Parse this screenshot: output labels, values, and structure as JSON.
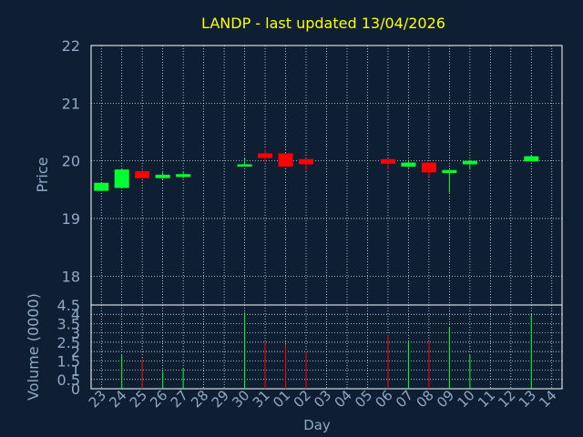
{
  "colors": {
    "background": "#0f1f33",
    "title": "#ffff00",
    "axis_text": "#8fa9c5",
    "frame": "#ffffff",
    "grid": "#ffffff",
    "up": "#00ff33",
    "down": "#ff0000"
  },
  "chart_data": [
    {
      "type": "candlestick",
      "title": "LANDP - last updated 13/04/2026",
      "xlabel": "",
      "ylabel": "Price",
      "ylim": [
        17.5,
        22
      ],
      "yticks": [
        18,
        19,
        20,
        21,
        22
      ],
      "grid": true,
      "x": [
        "23",
        "24",
        "25",
        "26",
        "27",
        "28",
        "29",
        "30",
        "31",
        "01",
        "02",
        "03",
        "04",
        "05",
        "06",
        "07",
        "08",
        "09",
        "10",
        "11",
        "12",
        "13",
        "14"
      ],
      "candles": [
        {
          "day": "23",
          "open": 19.48,
          "close": 19.62,
          "high": 19.62,
          "low": 19.48
        },
        {
          "day": "24",
          "open": 19.53,
          "close": 19.85,
          "high": 19.87,
          "low": 19.52
        },
        {
          "day": "25",
          "open": 19.82,
          "close": 19.7,
          "high": 19.86,
          "low": 19.7
        },
        {
          "day": "26",
          "open": 19.7,
          "close": 19.76,
          "high": 19.8,
          "low": 19.68
        },
        {
          "day": "27",
          "open": 19.72,
          "close": 19.77,
          "high": 19.82,
          "low": 19.7
        },
        {
          "day": "30",
          "open": 19.9,
          "close": 19.94,
          "high": 20.05,
          "low": 19.9
        },
        {
          "day": "31",
          "open": 20.13,
          "close": 20.05,
          "high": 20.2,
          "low": 19.98
        },
        {
          "day": "01",
          "open": 20.13,
          "close": 19.9,
          "high": 20.13,
          "low": 19.9
        },
        {
          "day": "02",
          "open": 20.03,
          "close": 19.94,
          "high": 20.03,
          "low": 19.83
        },
        {
          "day": "06",
          "open": 20.03,
          "close": 19.95,
          "high": 20.03,
          "low": 19.85
        },
        {
          "day": "07",
          "open": 19.9,
          "close": 19.97,
          "high": 20.02,
          "low": 19.88
        },
        {
          "day": "08",
          "open": 19.97,
          "close": 19.8,
          "high": 19.97,
          "low": 19.72
        },
        {
          "day": "09",
          "open": 19.79,
          "close": 19.84,
          "high": 19.85,
          "low": 19.45
        },
        {
          "day": "10",
          "open": 19.94,
          "close": 20.0,
          "high": 20.02,
          "low": 19.85
        },
        {
          "day": "13",
          "open": 19.99,
          "close": 20.08,
          "high": 20.1,
          "low": 19.99
        }
      ]
    },
    {
      "type": "bar",
      "title": "",
      "xlabel": "Day",
      "ylabel": "Volume (0000)",
      "ylim": [
        0,
        4.5
      ],
      "yticks": [
        0,
        0.5,
        1,
        1.5,
        2,
        2.5,
        3,
        3.5,
        4,
        4.5
      ],
      "ytick_labels": [
        "0",
        "0.5",
        "1",
        "1.5",
        "2",
        "2.5",
        "3",
        "3.5",
        "4",
        "4.5"
      ],
      "grid": true,
      "x": [
        "23",
        "24",
        "25",
        "26",
        "27",
        "28",
        "29",
        "30",
        "31",
        "01",
        "02",
        "03",
        "04",
        "05",
        "06",
        "07",
        "08",
        "09",
        "10",
        "11",
        "12",
        "13",
        "14"
      ],
      "bars": [
        {
          "day": "24",
          "value": 1.8,
          "direction": "up"
        },
        {
          "day": "25",
          "value": 1.6,
          "direction": "down"
        },
        {
          "day": "26",
          "value": 0.9,
          "direction": "up"
        },
        {
          "day": "27",
          "value": 1.1,
          "direction": "up"
        },
        {
          "day": "30",
          "value": 4.1,
          "direction": "up"
        },
        {
          "day": "31",
          "value": 2.5,
          "direction": "down"
        },
        {
          "day": "01",
          "value": 2.4,
          "direction": "down"
        },
        {
          "day": "02",
          "value": 2.0,
          "direction": "down"
        },
        {
          "day": "06",
          "value": 2.9,
          "direction": "down"
        },
        {
          "day": "07",
          "value": 2.6,
          "direction": "up"
        },
        {
          "day": "08",
          "value": 2.5,
          "direction": "down"
        },
        {
          "day": "09",
          "value": 3.3,
          "direction": "up"
        },
        {
          "day": "10",
          "value": 1.8,
          "direction": "up"
        },
        {
          "day": "13",
          "value": 4.0,
          "direction": "up"
        }
      ]
    }
  ]
}
